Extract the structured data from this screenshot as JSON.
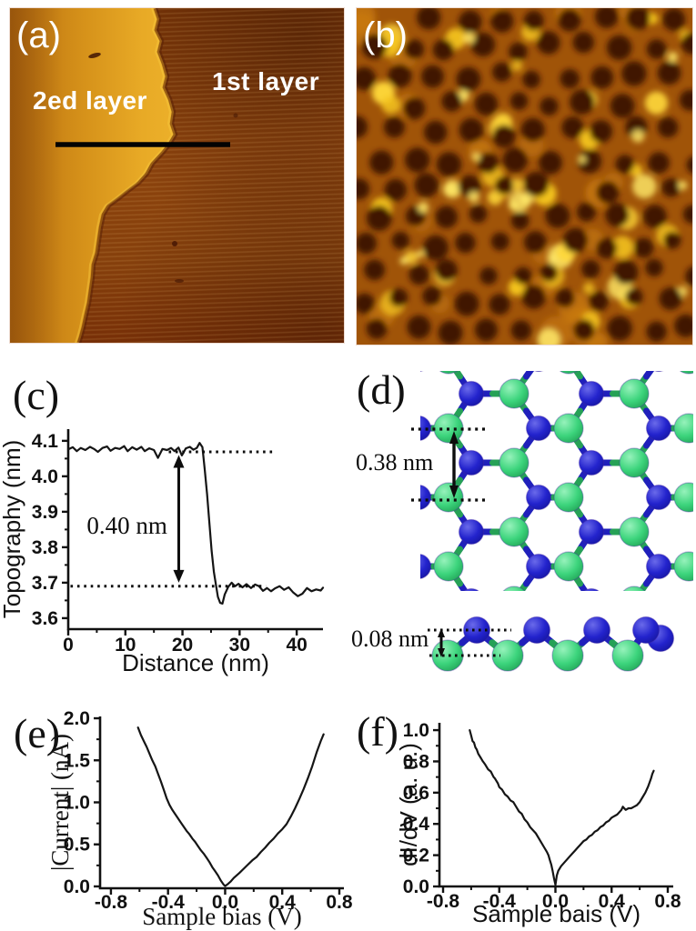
{
  "panels": {
    "a": {
      "label": "(a)",
      "layer2_label": "2ed layer",
      "layer1_label": "1st layer"
    },
    "b": {
      "label": "(b)"
    },
    "c": {
      "label": "(c)"
    },
    "d": {
      "label": "(d)",
      "row_spacing_label": "0.38 nm",
      "buckle_label": "0.08 nm"
    },
    "e": {
      "label": "(e)"
    },
    "f": {
      "label": "(f)"
    }
  },
  "colors": {
    "stm_bright_terrace": "#ecb02a",
    "stm_terrace_left": "#b96f10",
    "stm_dark_layer": "#86400c",
    "stm_b_bg": "#a05408",
    "stm_b_mid": "#c87a10",
    "stm_b_pore": "#401202",
    "stm_b_bright": "#f4c41e",
    "stm_b_brighter": "#ffd83a",
    "stm_b_brightest": "#ffe968",
    "atom_green": "#3cd47c",
    "atom_blue": "#2323cd",
    "bond_green": "#26a156",
    "bond_blue": "#2020bb",
    "curve": "#151515"
  },
  "chart_data": [
    {
      "id": "c",
      "type": "line",
      "title": "",
      "xlabel": "Distance (nm)",
      "ylabel": "Topography (nm)",
      "serif": false,
      "xlim": [
        0,
        44.6
      ],
      "ylim": [
        3.569,
        4.133
      ],
      "grid": false,
      "xticks": {
        "major": [
          0,
          10,
          20,
          30,
          40
        ],
        "labels": [
          "0",
          "10",
          "20",
          "30",
          "40"
        ],
        "minor": [
          5,
          15,
          25,
          35
        ]
      },
      "yticks": {
        "major": [
          3.6,
          3.7,
          3.8,
          3.9,
          4.0,
          4.1
        ],
        "labels": [
          "3.6",
          "3.7",
          "3.8",
          "3.9",
          "4.0",
          "4.1"
        ],
        "minor": [
          3.65,
          3.75,
          3.85,
          3.95,
          4.05
        ]
      },
      "points": [
        [
          0,
          4.076
        ],
        [
          0.8,
          4.082
        ],
        [
          1.5,
          4.071
        ],
        [
          2.2,
          4.08
        ],
        [
          3.0,
          4.074
        ],
        [
          3.8,
          4.083
        ],
        [
          4.5,
          4.077
        ],
        [
          5.2,
          4.069
        ],
        [
          6.0,
          4.08
        ],
        [
          6.8,
          4.084
        ],
        [
          7.4,
          4.072
        ],
        [
          8.2,
          4.08
        ],
        [
          9.0,
          4.077
        ],
        [
          9.8,
          4.085
        ],
        [
          10.4,
          4.071
        ],
        [
          11.2,
          4.082
        ],
        [
          12.0,
          4.075
        ],
        [
          12.8,
          4.083
        ],
        [
          13.4,
          4.071
        ],
        [
          14.2,
          4.079
        ],
        [
          15.0,
          4.074
        ],
        [
          15.7,
          4.052
        ],
        [
          16.5,
          4.077
        ],
        [
          17.3,
          4.074
        ],
        [
          18.0,
          4.08
        ],
        [
          18.6,
          4.071
        ],
        [
          19.3,
          4.081
        ],
        [
          19.9,
          4.059
        ],
        [
          20.6,
          4.079
        ],
        [
          21.3,
          4.083
        ],
        [
          21.9,
          4.075
        ],
        [
          22.5,
          4.08
        ],
        [
          23.0,
          4.094
        ],
        [
          23.5,
          4.082
        ],
        [
          23.9,
          4.02
        ],
        [
          24.3,
          3.95
        ],
        [
          24.7,
          3.87
        ],
        [
          25.1,
          3.79
        ],
        [
          25.5,
          3.73
        ],
        [
          25.9,
          3.69
        ],
        [
          26.2,
          3.66
        ],
        [
          26.6,
          3.643
        ],
        [
          27.0,
          3.641
        ],
        [
          27.4,
          3.667
        ],
        [
          28.0,
          3.688
        ],
        [
          28.6,
          3.7
        ],
        [
          29.2,
          3.69
        ],
        [
          29.8,
          3.697
        ],
        [
          30.5,
          3.687
        ],
        [
          31.2,
          3.696
        ],
        [
          32.0,
          3.685
        ],
        [
          32.7,
          3.695
        ],
        [
          33.4,
          3.69
        ],
        [
          34.1,
          3.677
        ],
        [
          34.8,
          3.685
        ],
        [
          35.5,
          3.676
        ],
        [
          36.2,
          3.684
        ],
        [
          37.0,
          3.69
        ],
        [
          37.8,
          3.68
        ],
        [
          38.6,
          3.687
        ],
        [
          39.4,
          3.672
        ],
        [
          40.2,
          3.662
        ],
        [
          41.0,
          3.669
        ],
        [
          41.8,
          3.685
        ],
        [
          42.6,
          3.676
        ],
        [
          43.4,
          3.681
        ],
        [
          44.2,
          3.678
        ],
        [
          44.6,
          3.686
        ]
      ],
      "annotations": [
        {
          "type": "hdots",
          "y": 4.069,
          "x1": 17.6,
          "x2": 35.8
        },
        {
          "type": "hdots",
          "y": 3.69,
          "x1": 0.4,
          "x2": 34.6
        },
        {
          "type": "varrow",
          "x": 19.35,
          "y1": 4.06,
          "y2": 3.7
        },
        {
          "type": "label",
          "text": "0.40 nm",
          "x": 10.3,
          "y": 3.838
        }
      ]
    },
    {
      "id": "e",
      "type": "line",
      "title": "",
      "xlabel": "Sample bias (V)",
      "ylabel": "|Current| (nA)",
      "serif": true,
      "xlim": [
        -0.876,
        0.832
      ],
      "ylim": [
        -0.022,
        2.022
      ],
      "grid": false,
      "xticks": {
        "major": [
          -0.8,
          -0.4,
          0.0,
          0.4,
          0.8
        ],
        "labels": [
          "-0.8",
          "-0.4",
          "0.0",
          "0.4",
          "0.8"
        ],
        "minor": [
          -0.6,
          -0.2,
          0.2,
          0.6
        ]
      },
      "yticks": {
        "major": [
          0.0,
          0.5,
          1.0,
          1.5,
          2.0
        ],
        "labels": [
          "0.0",
          "0.5",
          "1.0",
          "1.5",
          "2.0"
        ],
        "minor": [
          0.25,
          0.75,
          1.25,
          1.75
        ]
      },
      "points": [
        [
          -0.61,
          1.89
        ],
        [
          -0.59,
          1.8
        ],
        [
          -0.57,
          1.73
        ],
        [
          -0.55,
          1.66
        ],
        [
          -0.53,
          1.58
        ],
        [
          -0.51,
          1.5
        ],
        [
          -0.49,
          1.43
        ],
        [
          -0.47,
          1.34
        ],
        [
          -0.45,
          1.25
        ],
        [
          -0.43,
          1.15
        ],
        [
          -0.41,
          1.05
        ],
        [
          -0.39,
          0.97
        ],
        [
          -0.37,
          0.91
        ],
        [
          -0.35,
          0.86
        ],
        [
          -0.33,
          0.81
        ],
        [
          -0.31,
          0.76
        ],
        [
          -0.29,
          0.71
        ],
        [
          -0.27,
          0.66
        ],
        [
          -0.25,
          0.62
        ],
        [
          -0.23,
          0.57
        ],
        [
          -0.21,
          0.53
        ],
        [
          -0.19,
          0.48
        ],
        [
          -0.17,
          0.43
        ],
        [
          -0.15,
          0.39
        ],
        [
          -0.13,
          0.34
        ],
        [
          -0.11,
          0.29
        ],
        [
          -0.09,
          0.23
        ],
        [
          -0.07,
          0.18
        ],
        [
          -0.05,
          0.13
        ],
        [
          -0.03,
          0.07
        ],
        [
          -0.01,
          0.02
        ],
        [
          0.0,
          0.005
        ],
        [
          0.02,
          0.03
        ],
        [
          0.04,
          0.06
        ],
        [
          0.06,
          0.1
        ],
        [
          0.08,
          0.13
        ],
        [
          0.1,
          0.16
        ],
        [
          0.13,
          0.21
        ],
        [
          0.16,
          0.26
        ],
        [
          0.19,
          0.31
        ],
        [
          0.22,
          0.35
        ],
        [
          0.25,
          0.41
        ],
        [
          0.28,
          0.46
        ],
        [
          0.31,
          0.52
        ],
        [
          0.34,
          0.57
        ],
        [
          0.37,
          0.63
        ],
        [
          0.4,
          0.68
        ],
        [
          0.43,
          0.74
        ],
        [
          0.46,
          0.83
        ],
        [
          0.49,
          0.93
        ],
        [
          0.52,
          1.04
        ],
        [
          0.55,
          1.16
        ],
        [
          0.58,
          1.29
        ],
        [
          0.61,
          1.43
        ],
        [
          0.64,
          1.59
        ],
        [
          0.67,
          1.73
        ],
        [
          0.69,
          1.81
        ]
      ],
      "annotations": []
    },
    {
      "id": "f",
      "type": "line",
      "title": "",
      "xlabel": "Sample bais (V)",
      "ylabel": "dI/dV (a. u.)",
      "serif": false,
      "xlim": [
        -0.826,
        0.839
      ],
      "ylim": [
        0,
        1.047
      ],
      "grid": false,
      "xticks": {
        "major": [
          -0.8,
          -0.4,
          0.0,
          0.4,
          0.8
        ],
        "labels": [
          "-0.8",
          "-0.4",
          "0.0",
          "0.4",
          "0.8"
        ],
        "minor": [
          -0.6,
          -0.2,
          0.2,
          0.6
        ]
      },
      "yticks": {
        "major": [
          0.0,
          0.2,
          0.4,
          0.6,
          0.8,
          1.0
        ],
        "labels": [
          "0.0",
          "0.2",
          "0.4",
          "0.6",
          "0.8",
          "1.0"
        ],
        "minor": [
          0.1,
          0.3,
          0.5,
          0.7,
          0.9
        ]
      },
      "points": [
        [
          -0.61,
          1.0
        ],
        [
          -0.6,
          0.965
        ],
        [
          -0.59,
          0.93
        ],
        [
          -0.58,
          0.92
        ],
        [
          -0.57,
          0.89
        ],
        [
          -0.56,
          0.875
        ],
        [
          -0.55,
          0.85
        ],
        [
          -0.53,
          0.82
        ],
        [
          -0.52,
          0.805
        ],
        [
          -0.5,
          0.78
        ],
        [
          -0.48,
          0.75
        ],
        [
          -0.46,
          0.735
        ],
        [
          -0.44,
          0.7
        ],
        [
          -0.43,
          0.69
        ],
        [
          -0.41,
          0.66
        ],
        [
          -0.4,
          0.635
        ],
        [
          -0.38,
          0.62
        ],
        [
          -0.36,
          0.59
        ],
        [
          -0.34,
          0.575
        ],
        [
          -0.32,
          0.55
        ],
        [
          -0.3,
          0.54
        ],
        [
          -0.28,
          0.51
        ],
        [
          -0.26,
          0.48
        ],
        [
          -0.24,
          0.465
        ],
        [
          -0.22,
          0.43
        ],
        [
          -0.2,
          0.41
        ],
        [
          -0.18,
          0.38
        ],
        [
          -0.16,
          0.36
        ],
        [
          -0.14,
          0.34
        ],
        [
          -0.12,
          0.31
        ],
        [
          -0.1,
          0.28
        ],
        [
          -0.08,
          0.25
        ],
        [
          -0.06,
          0.22
        ],
        [
          -0.05,
          0.2
        ],
        [
          -0.04,
          0.17
        ],
        [
          -0.03,
          0.14
        ],
        [
          -0.02,
          0.1
        ],
        [
          -0.01,
          0.05
        ],
        [
          0.0,
          0.01
        ],
        [
          0.01,
          0.07
        ],
        [
          0.02,
          0.1
        ],
        [
          0.04,
          0.13
        ],
        [
          0.06,
          0.15
        ],
        [
          0.08,
          0.17
        ],
        [
          0.1,
          0.19
        ],
        [
          0.12,
          0.21
        ],
        [
          0.14,
          0.23
        ],
        [
          0.16,
          0.25
        ],
        [
          0.18,
          0.27
        ],
        [
          0.2,
          0.29
        ],
        [
          0.22,
          0.3
        ],
        [
          0.24,
          0.32
        ],
        [
          0.26,
          0.33
        ],
        [
          0.28,
          0.35
        ],
        [
          0.3,
          0.36
        ],
        [
          0.32,
          0.38
        ],
        [
          0.34,
          0.39
        ],
        [
          0.36,
          0.41
        ],
        [
          0.38,
          0.42
        ],
        [
          0.4,
          0.44
        ],
        [
          0.42,
          0.45
        ],
        [
          0.44,
          0.46
        ],
        [
          0.46,
          0.48
        ],
        [
          0.47,
          0.49
        ],
        [
          0.48,
          0.51
        ],
        [
          0.49,
          0.5
        ],
        [
          0.5,
          0.49
        ],
        [
          0.52,
          0.5
        ],
        [
          0.54,
          0.5
        ],
        [
          0.56,
          0.51
        ],
        [
          0.58,
          0.52
        ],
        [
          0.6,
          0.54
        ],
        [
          0.62,
          0.57
        ],
        [
          0.64,
          0.6
        ],
        [
          0.66,
          0.64
        ],
        [
          0.68,
          0.69
        ],
        [
          0.69,
          0.72
        ],
        [
          0.7,
          0.74
        ]
      ],
      "annotations": []
    }
  ]
}
